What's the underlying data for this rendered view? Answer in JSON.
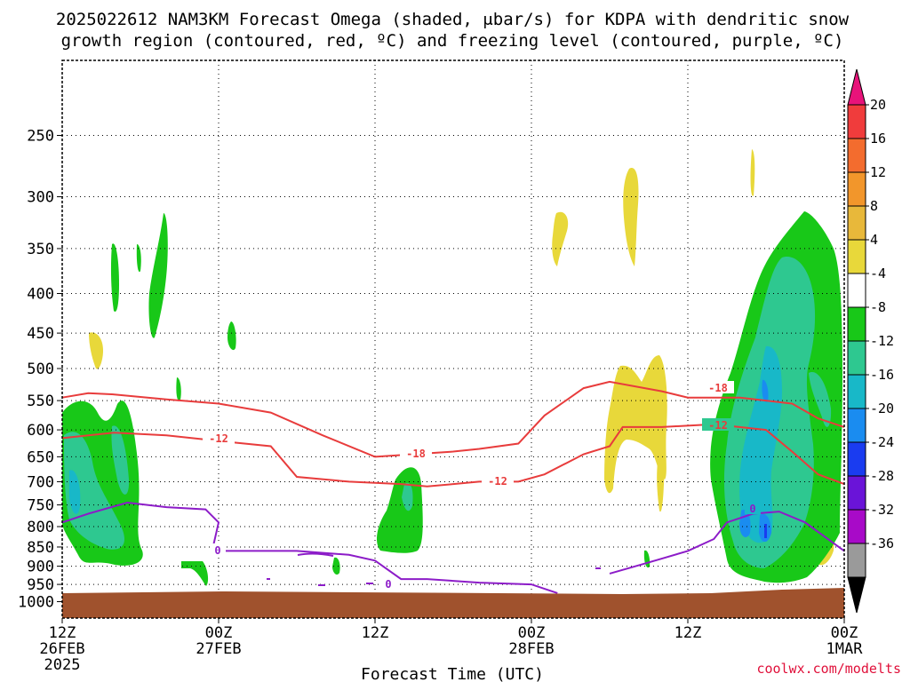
{
  "chart_data": {
    "type": "heatmap",
    "title_line1": "2025022612 NAM3KM Forecast Omega (shaded, μbar/s) for KDPA with dendritic snow",
    "title_line2": "growth region (contoured, red, ºC) and freezing level (contoured, purple, ºC)",
    "xlabel": "Forecast Time (UTC)",
    "ylabel": "",
    "y_scale": "log-pressure",
    "y_unit": "hPa",
    "ylim": [
      1050,
      200
    ],
    "y_ticks": [
      250,
      300,
      350,
      400,
      450,
      500,
      550,
      600,
      650,
      700,
      750,
      800,
      850,
      900,
      950,
      1000
    ],
    "x_ticks": [
      {
        "hour": 0,
        "lines": [
          "12Z",
          "26FEB",
          "2025"
        ]
      },
      {
        "hour": 12,
        "lines": [
          "00Z",
          "27FEB"
        ]
      },
      {
        "hour": 24,
        "lines": [
          "12Z",
          ""
        ]
      },
      {
        "hour": 36,
        "lines": [
          "00Z",
          "28FEB"
        ]
      },
      {
        "hour": 48,
        "lines": [
          "12Z",
          ""
        ]
      },
      {
        "hour": 60,
        "lines": [
          "00Z",
          "1MAR"
        ]
      }
    ],
    "xlim_hours": [
      0,
      60
    ],
    "grid": true,
    "colorbar": {
      "unit": "μbar/s",
      "labels": [
        20,
        16,
        12,
        8,
        4,
        -4,
        -8,
        -12,
        -16,
        -20,
        -24,
        -28,
        -32,
        -36
      ],
      "colors_top_to_bottom": [
        "#e8137a",
        "#f03c3c",
        "#f36c2e",
        "#f2962b",
        "#e8b83a",
        "#e8d83a",
        "#ffffff",
        "#18c818",
        "#2ec890",
        "#18b8c8",
        "#1a8cf0",
        "#1a3cf0",
        "#6a14d8",
        "#a80ac8",
        "#9a9a9a",
        "#000000"
      ]
    },
    "omega_regions": [
      {
        "hours": [
          0,
          6
        ],
        "p_range": [
          560,
          900
        ],
        "class": "-8 to -12",
        "max_class": "-16"
      },
      {
        "hours": [
          1,
          3
        ],
        "p_range": [
          450,
          500
        ],
        "class": "4 to 8"
      },
      {
        "hours": [
          3.7,
          4.2
        ],
        "p_range": [
          350,
          420
        ],
        "class": "-4 to -8"
      },
      {
        "hours": [
          7.3,
          8.3
        ],
        "p_range": [
          330,
          460
        ],
        "class": "-4 to -8"
      },
      {
        "hours": [
          12.5,
          13.2
        ],
        "p_range": [
          450,
          490
        ],
        "class": "-4 to -8"
      },
      {
        "hours": [
          24.7,
          28.1
        ],
        "p_range": [
          670,
          870
        ],
        "class": "-4 to -8",
        "max_class": "-12"
      },
      {
        "hours": [
          38,
          39.5
        ],
        "p_range": [
          330,
          400
        ],
        "class": "4 to 8"
      },
      {
        "hours": [
          43.8,
          45
        ],
        "p_range": [
          280,
          380
        ],
        "class": "4 to 8"
      },
      {
        "hours": [
          41.5,
          45.5
        ],
        "p_range": [
          510,
          760
        ],
        "class": "4 to 8"
      },
      {
        "hours": [
          46.2,
          47.5
        ],
        "p_range": [
          500,
          790
        ],
        "class": "4 to 8"
      },
      {
        "hours": [
          50.5,
          59.8
        ],
        "p_range": [
          320,
          950
        ],
        "class": "-8 to -12",
        "max_class": "-24"
      },
      {
        "hours": [
          58.5,
          59.2
        ],
        "p_range": [
          820,
          900
        ],
        "class": "4 to 8"
      }
    ],
    "contours": [
      {
        "label": "-18",
        "color": "#e83c3c",
        "points": [
          [
            0,
            545
          ],
          [
            2,
            538
          ],
          [
            4,
            540
          ],
          [
            8,
            548
          ],
          [
            12,
            555
          ],
          [
            16,
            570
          ],
          [
            20,
            610
          ],
          [
            24,
            650
          ],
          [
            27,
            645
          ],
          [
            30,
            640
          ],
          [
            32,
            635
          ],
          [
            35,
            625
          ],
          [
            37,
            575
          ],
          [
            40,
            530
          ],
          [
            42,
            520
          ],
          [
            46,
            535
          ],
          [
            48,
            545
          ],
          [
            52,
            545
          ],
          [
            56,
            555
          ],
          [
            58,
            580
          ],
          [
            60,
            595
          ]
        ]
      },
      {
        "label": "-12",
        "color": "#e83c3c",
        "points": [
          [
            0,
            615
          ],
          [
            4,
            605
          ],
          [
            8,
            610
          ],
          [
            12,
            620
          ],
          [
            16,
            630
          ],
          [
            18,
            690
          ],
          [
            22,
            700
          ],
          [
            26,
            705
          ],
          [
            28,
            710
          ],
          [
            30,
            705
          ],
          [
            32,
            700
          ],
          [
            35,
            700
          ],
          [
            37,
            685
          ],
          [
            40,
            645
          ],
          [
            42,
            630
          ],
          [
            43,
            595
          ],
          [
            46,
            595
          ],
          [
            50,
            590
          ],
          [
            54,
            600
          ],
          [
            56,
            640
          ],
          [
            58,
            685
          ],
          [
            60,
            705
          ]
        ]
      },
      {
        "label": "0",
        "color": "#8c1cc8",
        "points": [
          [
            0,
            790
          ],
          [
            2,
            770
          ],
          [
            5,
            745
          ],
          [
            8,
            755
          ],
          [
            11,
            760
          ],
          [
            12,
            790
          ],
          [
            11.5,
            860
          ],
          [
            14,
            860
          ],
          [
            18,
            860
          ],
          [
            22,
            870
          ],
          [
            24,
            885
          ],
          [
            26,
            935
          ],
          [
            28,
            935
          ],
          [
            32,
            945
          ],
          [
            36,
            950
          ],
          [
            38,
            975
          ]
        ]
      },
      {
        "label": "0",
        "color": "#8c1cc8",
        "points": [
          [
            42,
            920
          ],
          [
            44,
            900
          ],
          [
            46,
            880
          ],
          [
            48,
            860
          ],
          [
            50,
            830
          ],
          [
            51,
            790
          ],
          [
            53,
            770
          ],
          [
            55,
            765
          ],
          [
            57,
            790
          ],
          [
            60,
            860
          ]
        ]
      }
    ],
    "annotation": "coolwx.com/modelts"
  }
}
